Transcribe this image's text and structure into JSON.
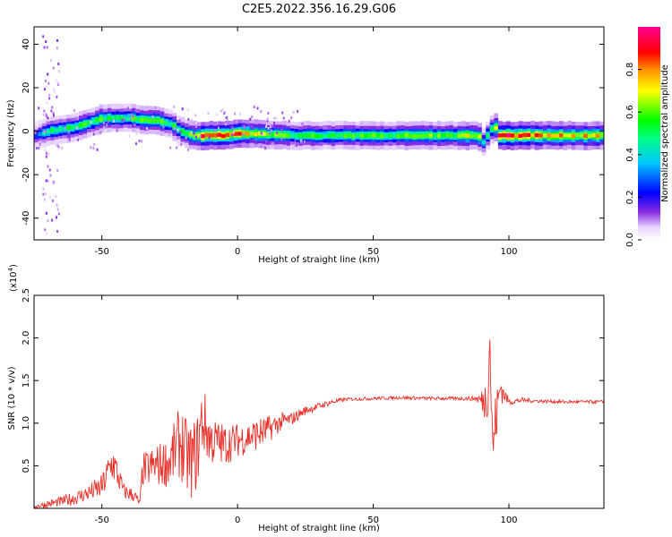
{
  "title": "C2E5.2022.356.16.29.G06",
  "chart_data": [
    {
      "type": "heatmap",
      "xlabel": "Height of straight line (km)",
      "ylabel": "Frequency (Hz)",
      "xlim": [
        -75,
        135
      ],
      "ylim": [
        -50,
        48
      ],
      "xticks": [
        -50,
        0,
        50,
        100
      ],
      "yticks": [
        -40,
        -20,
        0,
        20,
        40
      ],
      "colorbar": {
        "label": "Normalized spectral amplitude",
        "range": [
          0,
          1
        ],
        "ticks": [
          "0.0",
          "0.2",
          "0.4",
          "0.6",
          "0.8"
        ],
        "colors": [
          "#ffffff",
          "#8a2be2",
          "#0000ff",
          "#00c8ff",
          "#00ff00",
          "#ffff00",
          "#ff8000",
          "#ff0000",
          "#ff0090"
        ]
      },
      "ridge": {
        "x": [
          -75,
          -70,
          -65,
          -60,
          -55,
          -50,
          -45,
          -40,
          -35,
          -30,
          -25,
          -20,
          -17,
          -12,
          -5,
          0,
          5,
          10,
          20,
          40,
          60,
          80,
          88,
          90,
          92,
          94,
          96,
          100,
          110,
          135
        ],
        "y": [
          -2,
          0,
          1,
          2,
          4,
          6,
          6,
          6,
          5,
          5,
          3,
          -1,
          -2,
          -2,
          -2,
          -1,
          -1,
          -1.5,
          -2,
          -2,
          -2,
          -2,
          -2,
          -5,
          -1,
          3,
          -2,
          -2,
          -2,
          -2
        ],
        "amp": [
          0.3,
          0.45,
          0.5,
          0.5,
          0.55,
          0.55,
          0.5,
          0.55,
          0.55,
          0.6,
          0.5,
          0.55,
          0.7,
          0.85,
          0.9,
          0.8,
          0.65,
          0.6,
          0.55,
          0.55,
          0.55,
          0.6,
          0.7,
          0.4,
          0.5,
          0.5,
          0.9,
          0.9,
          0.8,
          0.7
        ]
      }
    },
    {
      "type": "line",
      "xlabel": "Height of straight line (km)",
      "ylabel": "SNR (10 * v/v)",
      "scale_label_base": "(x10",
      "scale_label_exp": "4",
      "scale_label_end": ")",
      "xlim": [
        -75,
        135
      ],
      "ylim": [
        0,
        2.5
      ],
      "xticks": [
        -50,
        0,
        50,
        100
      ],
      "yticks": [
        0.5,
        1.0,
        1.5,
        2.0,
        2.5
      ],
      "ytick_labels": [
        "0.5",
        "1.0",
        "1.5",
        "2.0",
        "2.5"
      ],
      "color": "#e8302a",
      "series": [
        {
          "x": [
            -75,
            -70,
            -65,
            -60,
            -55,
            -50,
            -46,
            -42,
            -38,
            -36,
            -35,
            -30,
            -25,
            -21,
            -19,
            -17,
            -15,
            -13,
            -10,
            -5,
            0,
            5,
            10,
            15,
            20,
            25,
            30,
            35,
            40,
            50,
            60,
            70,
            80,
            88,
            91,
            92,
            93,
            94,
            95,
            97,
            98,
            100,
            105,
            110,
            120,
            135
          ],
          "y": [
            0.02,
            0.05,
            0.08,
            0.12,
            0.18,
            0.25,
            0.55,
            0.2,
            0.15,
            0.05,
            0.45,
            0.5,
            0.55,
            0.8,
            0.6,
            0.55,
            0.65,
            1.05,
            0.8,
            0.75,
            0.8,
            0.85,
            0.9,
            1.0,
            1.05,
            1.15,
            1.2,
            1.25,
            1.28,
            1.29,
            1.3,
            1.29,
            1.29,
            1.29,
            1.25,
            1.4,
            1.95,
            0.7,
            1.0,
            1.45,
            1.35,
            1.25,
            1.27,
            1.26,
            1.25,
            1.25
          ],
          "noise": [
            0.02,
            0.05,
            0.06,
            0.08,
            0.1,
            0.15,
            0.25,
            0.1,
            0.08,
            0.05,
            0.2,
            0.25,
            0.3,
            0.45,
            0.45,
            0.45,
            0.45,
            0.45,
            0.3,
            0.25,
            0.2,
            0.2,
            0.18,
            0.12,
            0.08,
            0.05,
            0.04,
            0.03,
            0.02,
            0.02,
            0.02,
            0.02,
            0.02,
            0.03,
            0.2,
            0.4,
            0.5,
            0.3,
            0.35,
            0.25,
            0.1,
            0.04,
            0.03,
            0.02,
            0.02,
            0.02
          ]
        }
      ]
    }
  ]
}
